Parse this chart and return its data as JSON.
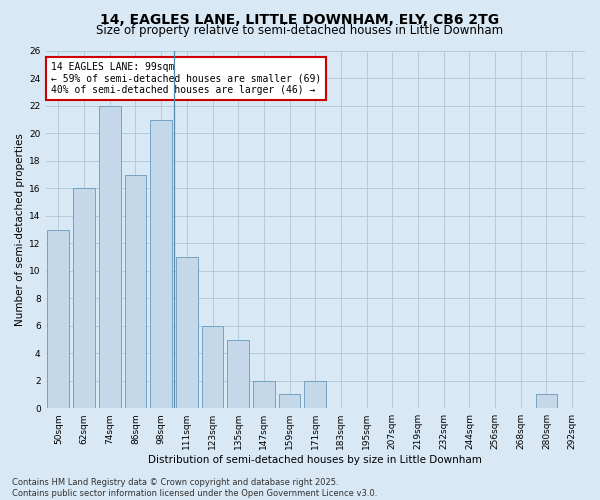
{
  "title_line1": "14, EAGLES LANE, LITTLE DOWNHAM, ELY, CB6 2TG",
  "title_line2": "Size of property relative to semi-detached houses in Little Downham",
  "xlabel": "Distribution of semi-detached houses by size in Little Downham",
  "ylabel": "Number of semi-detached properties",
  "categories": [
    "50sqm",
    "62sqm",
    "74sqm",
    "86sqm",
    "98sqm",
    "111sqm",
    "123sqm",
    "135sqm",
    "147sqm",
    "159sqm",
    "171sqm",
    "183sqm",
    "195sqm",
    "207sqm",
    "219sqm",
    "232sqm",
    "244sqm",
    "256sqm",
    "268sqm",
    "280sqm",
    "292sqm"
  ],
  "values": [
    13,
    16,
    22,
    17,
    21,
    11,
    6,
    5,
    2,
    1,
    2,
    0,
    0,
    0,
    0,
    0,
    0,
    0,
    0,
    1,
    0
  ],
  "bar_color": "#c5d8ea",
  "bar_edge_color": "#6699bb",
  "vline_x": 4.5,
  "annotation_title": "14 EAGLES LANE: 99sqm",
  "annotation_line1": "← 59% of semi-detached houses are smaller (69)",
  "annotation_line2": "40% of semi-detached houses are larger (46) →",
  "annotation_box_facecolor": "#ffffff",
  "annotation_box_edgecolor": "#cc0000",
  "vline_color": "#5588aa",
  "ylim": [
    0,
    26
  ],
  "yticks": [
    0,
    2,
    4,
    6,
    8,
    10,
    12,
    14,
    16,
    18,
    20,
    22,
    24,
    26
  ],
  "grid_color": "#aec6d8",
  "background_color": "#d8e8f4",
  "plot_bg_color": "#d8e8f4",
  "footer_line1": "Contains HM Land Registry data © Crown copyright and database right 2025.",
  "footer_line2": "Contains public sector information licensed under the Open Government Licence v3.0.",
  "title_fontsize": 10,
  "subtitle_fontsize": 8.5,
  "tick_fontsize": 6.5,
  "ylabel_fontsize": 7.5,
  "xlabel_fontsize": 7.5,
  "annotation_fontsize": 7,
  "footer_fontsize": 6
}
